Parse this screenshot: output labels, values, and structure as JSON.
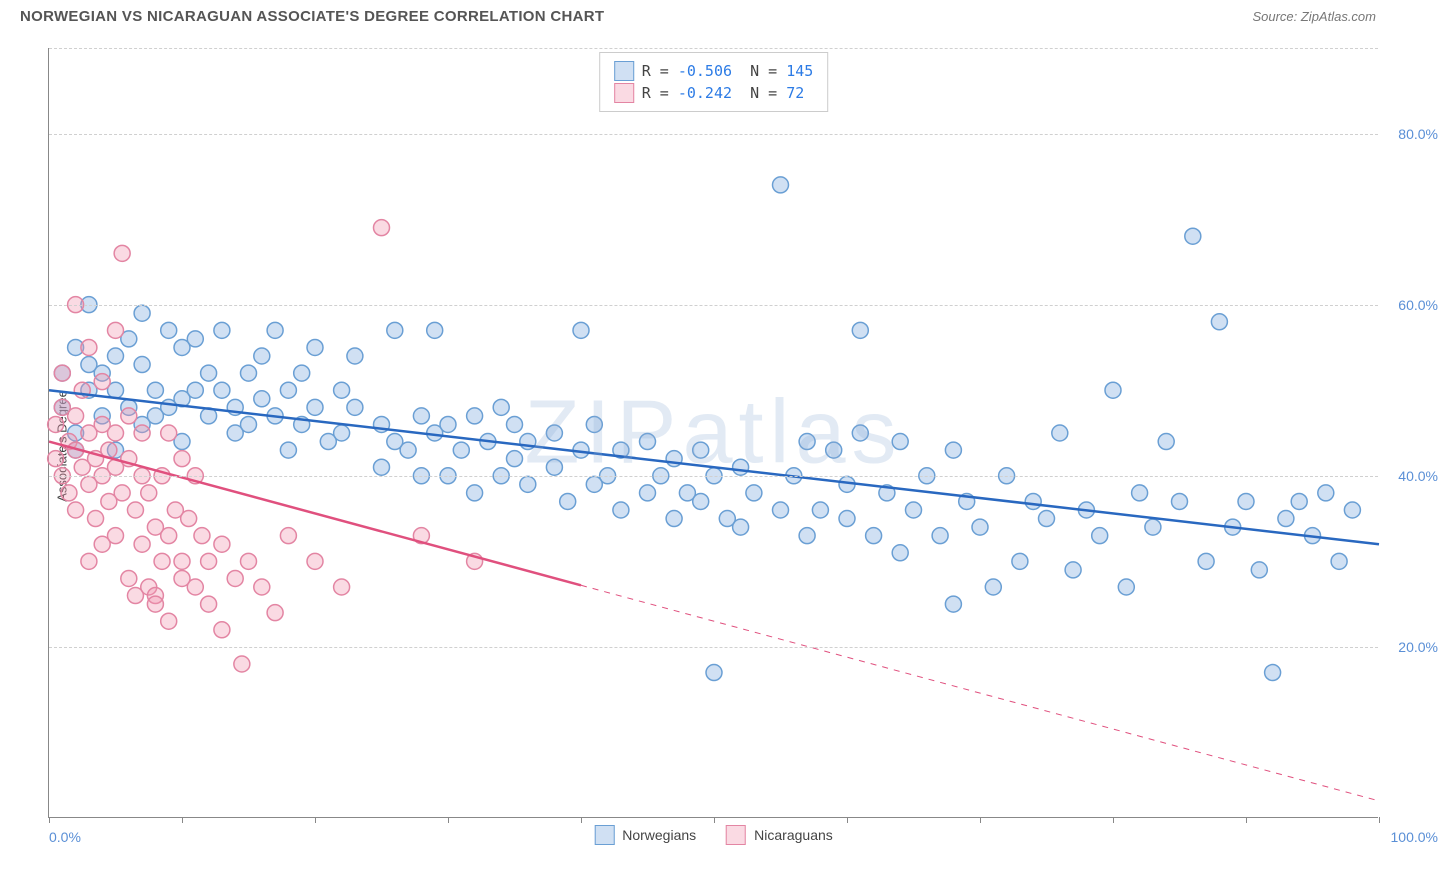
{
  "header": {
    "title": "NORWEGIAN VS NICARAGUAN ASSOCIATE'S DEGREE CORRELATION CHART",
    "source_label": "Source: ",
    "source_name": "ZipAtlas.com"
  },
  "chart": {
    "type": "scatter",
    "ylabel": "Associate's Degree",
    "xlim": [
      0,
      100
    ],
    "ylim": [
      0,
      90
    ],
    "xlim_labels": [
      "0.0%",
      "100.0%"
    ],
    "yticks": [
      20,
      40,
      60,
      80
    ],
    "ytick_labels": [
      "20.0%",
      "40.0%",
      "60.0%",
      "80.0%"
    ],
    "xtick_positions": [
      0,
      10,
      20,
      30,
      40,
      50,
      60,
      70,
      80,
      90,
      100
    ],
    "background_color": "#ffffff",
    "grid_color": "#d0d0d0",
    "marker_radius": 8,
    "marker_stroke_width": 1.5,
    "line_width": 2.5,
    "watermark": "ZIPatlas",
    "series": [
      {
        "name": "Norwegians",
        "color_fill": "rgba(120,165,220,0.35)",
        "color_stroke": "#6a9fd4",
        "line_color": "#2968c0",
        "R": "-0.506",
        "N": "145",
        "trend": {
          "x1": 0,
          "y1": 50,
          "x2": 100,
          "y2": 32,
          "solid_until": 100
        },
        "points": [
          [
            1,
            52
          ],
          [
            1,
            48
          ],
          [
            2,
            55
          ],
          [
            2,
            45
          ],
          [
            2,
            43
          ],
          [
            3,
            53
          ],
          [
            3,
            50
          ],
          [
            3,
            60
          ],
          [
            4,
            52
          ],
          [
            4,
            47
          ],
          [
            5,
            54
          ],
          [
            5,
            43
          ],
          [
            5,
            50
          ],
          [
            6,
            56
          ],
          [
            6,
            48
          ],
          [
            7,
            53
          ],
          [
            7,
            46
          ],
          [
            7,
            59
          ],
          [
            8,
            50
          ],
          [
            8,
            47
          ],
          [
            9,
            48
          ],
          [
            9,
            57
          ],
          [
            10,
            55
          ],
          [
            10,
            49
          ],
          [
            10,
            44
          ],
          [
            11,
            50
          ],
          [
            11,
            56
          ],
          [
            12,
            47
          ],
          [
            12,
            52
          ],
          [
            13,
            50
          ],
          [
            13,
            57
          ],
          [
            14,
            45
          ],
          [
            14,
            48
          ],
          [
            15,
            52
          ],
          [
            15,
            46
          ],
          [
            16,
            54
          ],
          [
            16,
            49
          ],
          [
            17,
            47
          ],
          [
            17,
            57
          ],
          [
            18,
            50
          ],
          [
            18,
            43
          ],
          [
            19,
            46
          ],
          [
            19,
            52
          ],
          [
            20,
            48
          ],
          [
            20,
            55
          ],
          [
            21,
            44
          ],
          [
            22,
            45
          ],
          [
            22,
            50
          ],
          [
            23,
            48
          ],
          [
            23,
            54
          ],
          [
            25,
            46
          ],
          [
            25,
            41
          ],
          [
            26,
            44
          ],
          [
            26,
            57
          ],
          [
            27,
            43
          ],
          [
            28,
            47
          ],
          [
            28,
            40
          ],
          [
            29,
            57
          ],
          [
            29,
            45
          ],
          [
            30,
            46
          ],
          [
            30,
            40
          ],
          [
            31,
            43
          ],
          [
            32,
            47
          ],
          [
            32,
            38
          ],
          [
            33,
            44
          ],
          [
            34,
            40
          ],
          [
            34,
            48
          ],
          [
            35,
            42
          ],
          [
            35,
            46
          ],
          [
            36,
            39
          ],
          [
            36,
            44
          ],
          [
            38,
            41
          ],
          [
            38,
            45
          ],
          [
            39,
            37
          ],
          [
            40,
            57
          ],
          [
            40,
            43
          ],
          [
            41,
            39
          ],
          [
            41,
            46
          ],
          [
            42,
            40
          ],
          [
            43,
            43
          ],
          [
            43,
            36
          ],
          [
            45,
            38
          ],
          [
            45,
            44
          ],
          [
            46,
            40
          ],
          [
            47,
            35
          ],
          [
            47,
            42
          ],
          [
            48,
            38
          ],
          [
            49,
            43
          ],
          [
            49,
            37
          ],
          [
            50,
            40
          ],
          [
            50,
            17
          ],
          [
            51,
            35
          ],
          [
            52,
            41
          ],
          [
            52,
            34
          ],
          [
            53,
            38
          ],
          [
            55,
            36
          ],
          [
            55,
            74
          ],
          [
            56,
            40
          ],
          [
            57,
            33
          ],
          [
            57,
            44
          ],
          [
            58,
            36
          ],
          [
            59,
            43
          ],
          [
            60,
            35
          ],
          [
            60,
            39
          ],
          [
            61,
            57
          ],
          [
            61,
            45
          ],
          [
            62,
            33
          ],
          [
            63,
            38
          ],
          [
            64,
            44
          ],
          [
            64,
            31
          ],
          [
            65,
            36
          ],
          [
            66,
            40
          ],
          [
            67,
            33
          ],
          [
            68,
            43
          ],
          [
            68,
            25
          ],
          [
            69,
            37
          ],
          [
            70,
            34
          ],
          [
            71,
            27
          ],
          [
            72,
            40
          ],
          [
            73,
            30
          ],
          [
            74,
            37
          ],
          [
            75,
            35
          ],
          [
            76,
            45
          ],
          [
            77,
            29
          ],
          [
            78,
            36
          ],
          [
            79,
            33
          ],
          [
            80,
            50
          ],
          [
            81,
            27
          ],
          [
            82,
            38
          ],
          [
            83,
            34
          ],
          [
            84,
            44
          ],
          [
            85,
            37
          ],
          [
            86,
            68
          ],
          [
            87,
            30
          ],
          [
            88,
            58
          ],
          [
            89,
            34
          ],
          [
            90,
            37
          ],
          [
            91,
            29
          ],
          [
            92,
            17
          ],
          [
            93,
            35
          ],
          [
            94,
            37
          ],
          [
            95,
            33
          ],
          [
            96,
            38
          ],
          [
            97,
            30
          ],
          [
            98,
            36
          ]
        ]
      },
      {
        "name": "Nicaraguans",
        "color_fill": "rgba(240,150,175,0.35)",
        "color_stroke": "#e385a3",
        "line_color": "#e0507e",
        "R": "-0.242",
        "N": "72",
        "trend": {
          "x1": 0,
          "y1": 44,
          "x2": 100,
          "y2": 2,
          "solid_until": 40
        },
        "points": [
          [
            0.5,
            46
          ],
          [
            0.5,
            42
          ],
          [
            1,
            48
          ],
          [
            1,
            40
          ],
          [
            1,
            52
          ],
          [
            1.5,
            44
          ],
          [
            1.5,
            38
          ],
          [
            2,
            47
          ],
          [
            2,
            43
          ],
          [
            2,
            36
          ],
          [
            2,
            60
          ],
          [
            2.5,
            41
          ],
          [
            2.5,
            50
          ],
          [
            3,
            45
          ],
          [
            3,
            39
          ],
          [
            3,
            30
          ],
          [
            3,
            55
          ],
          [
            3.5,
            42
          ],
          [
            3.5,
            35
          ],
          [
            4,
            46
          ],
          [
            4,
            40
          ],
          [
            4,
            32
          ],
          [
            4,
            51
          ],
          [
            4.5,
            37
          ],
          [
            4.5,
            43
          ],
          [
            5,
            45
          ],
          [
            5,
            33
          ],
          [
            5,
            41
          ],
          [
            5,
            57
          ],
          [
            5.5,
            38
          ],
          [
            5.5,
            66
          ],
          [
            6,
            28
          ],
          [
            6,
            42
          ],
          [
            6,
            47
          ],
          [
            6.5,
            26
          ],
          [
            6.5,
            36
          ],
          [
            7,
            40
          ],
          [
            7,
            32
          ],
          [
            7,
            45
          ],
          [
            7.5,
            27
          ],
          [
            7.5,
            38
          ],
          [
            8,
            26
          ],
          [
            8,
            34
          ],
          [
            8,
            25
          ],
          [
            8.5,
            30
          ],
          [
            8.5,
            40
          ],
          [
            9,
            33
          ],
          [
            9,
            45
          ],
          [
            9,
            23
          ],
          [
            9.5,
            36
          ],
          [
            10,
            30
          ],
          [
            10,
            42
          ],
          [
            10,
            28
          ],
          [
            10.5,
            35
          ],
          [
            11,
            27
          ],
          [
            11,
            40
          ],
          [
            11.5,
            33
          ],
          [
            12,
            30
          ],
          [
            12,
            25
          ],
          [
            13,
            32
          ],
          [
            13,
            22
          ],
          [
            14,
            28
          ],
          [
            14.5,
            18
          ],
          [
            15,
            30
          ],
          [
            16,
            27
          ],
          [
            17,
            24
          ],
          [
            18,
            33
          ],
          [
            20,
            30
          ],
          [
            22,
            27
          ],
          [
            25,
            69
          ],
          [
            28,
            33
          ],
          [
            32,
            30
          ]
        ]
      }
    ]
  }
}
